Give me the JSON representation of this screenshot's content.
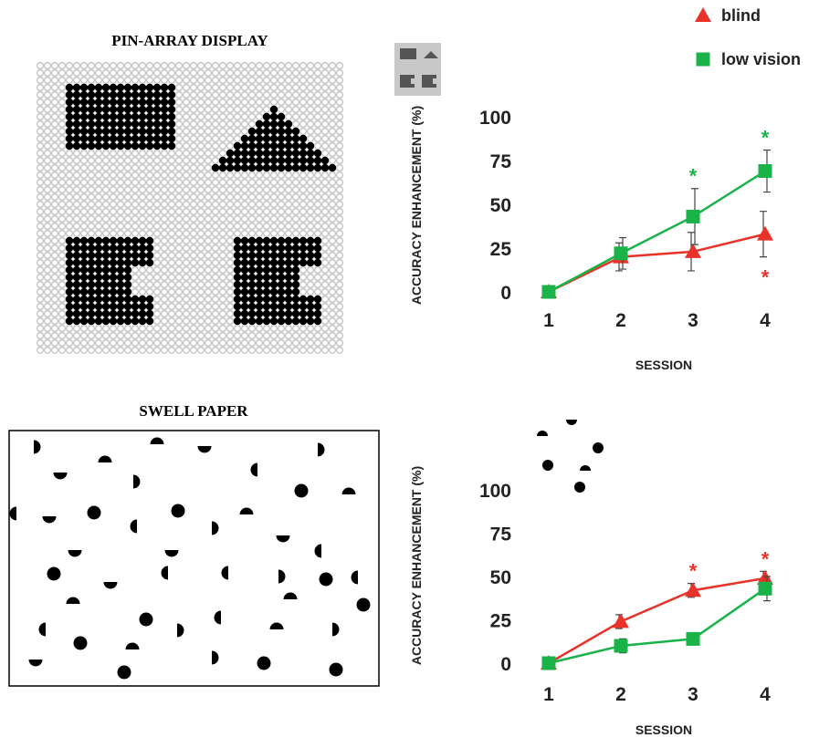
{
  "panels": [
    "PIN-ARRAY DISPLAY",
    "SWELL PAPER"
  ],
  "chart_data": [
    {
      "type": "line",
      "categories": [
        "1",
        "2",
        "3",
        "4"
      ],
      "x_label": "SESSION",
      "y_label": "ACCURACY ENHANCEMENT (%)",
      "ylim": [
        0,
        100
      ],
      "yticks": [
        0,
        25,
        50,
        75,
        100
      ],
      "series": [
        {
          "name": "blind",
          "color": "#e8322a",
          "marker": "triangle",
          "values": [
            0,
            20,
            23,
            33
          ],
          "errors": [
            0,
            8,
            11,
            13
          ],
          "annotations": [
            null,
            null,
            null,
            "*"
          ]
        },
        {
          "name": "low vision",
          "color": "#19b34a",
          "marker": "square",
          "values": [
            0,
            22,
            43,
            69
          ],
          "errors": [
            0,
            9,
            16,
            12
          ],
          "annotations": [
            null,
            null,
            "*",
            "*"
          ]
        }
      ]
    },
    {
      "type": "line",
      "categories": [
        "1",
        "2",
        "3",
        "4"
      ],
      "x_label": "SESSION",
      "y_label": "ACCURACY ENHANCEMENT (%)",
      "ylim": [
        0,
        100
      ],
      "yticks": [
        0,
        25,
        50,
        75,
        100
      ],
      "series": [
        {
          "color": "#e8322a",
          "marker": "triangle",
          "values": [
            0,
            24,
            42,
            49
          ],
          "errors": [
            0,
            4,
            4,
            4
          ],
          "annotations": [
            null,
            null,
            "*",
            "*"
          ]
        },
        {
          "color": "#19b34a",
          "marker": "square",
          "values": [
            0,
            10,
            14,
            43
          ],
          "errors": [
            0,
            4,
            2,
            7
          ],
          "annotations": [
            null,
            null,
            null,
            null
          ]
        }
      ]
    }
  ]
}
